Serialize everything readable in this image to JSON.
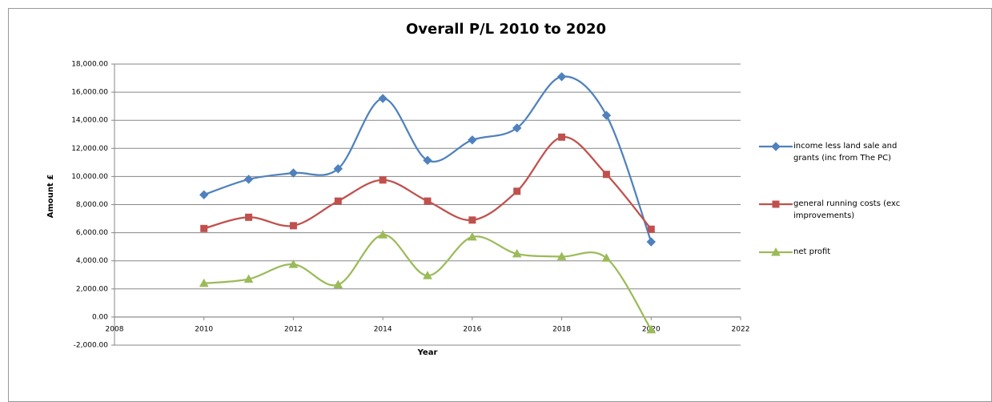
{
  "chart_data": {
    "type": "line",
    "title": "Overall P/L  2010 to 2020",
    "xlabel": "Year",
    "ylabel": "Amount £",
    "x": [
      2010,
      2011,
      2012,
      2013,
      2014,
      2015,
      2016,
      2017,
      2018,
      2019,
      2020
    ],
    "series": [
      {
        "name": "income less land sale and grants (inc from The PC)",
        "color": "#4f81bd",
        "marker": "diamond",
        "values": [
          8700,
          9800,
          10250,
          10550,
          15550,
          11150,
          12600,
          13450,
          17100,
          14350,
          5350
        ]
      },
      {
        "name": "general running costs (exc improvements)",
        "color": "#c0504d",
        "marker": "square",
        "values": [
          6300,
          7100,
          6500,
          8250,
          9750,
          8250,
          6900,
          8950,
          12800,
          10150,
          6250
        ]
      },
      {
        "name": "net profit",
        "color": "#9bbb59",
        "marker": "triangle",
        "values": [
          2400,
          2700,
          3750,
          2300,
          5850,
          2950,
          5700,
          4500,
          4300,
          4200,
          -900
        ]
      }
    ],
    "xlim": [
      2008,
      2022
    ],
    "xticks": [
      2008,
      2010,
      2012,
      2014,
      2016,
      2018,
      2020,
      2022
    ],
    "ylim": [
      -2000,
      18000
    ],
    "yticks": [
      {
        "value": -2000,
        "label": "-2,000.00"
      },
      {
        "value": 0,
        "label": "0.00"
      },
      {
        "value": 2000,
        "label": "2,000.00"
      },
      {
        "value": 4000,
        "label": "4,000.00"
      },
      {
        "value": 6000,
        "label": "6,000.00"
      },
      {
        "value": 8000,
        "label": "8,000.00"
      },
      {
        "value": 10000,
        "label": "10,000.00"
      },
      {
        "value": 12000,
        "label": "12,000.00"
      },
      {
        "value": 14000,
        "label": "14,000.00"
      },
      {
        "value": 16000,
        "label": "16,000.00"
      },
      {
        "value": 18000,
        "label": "18,000.00"
      }
    ],
    "grid": true,
    "smooth": true,
    "legend": "right"
  }
}
